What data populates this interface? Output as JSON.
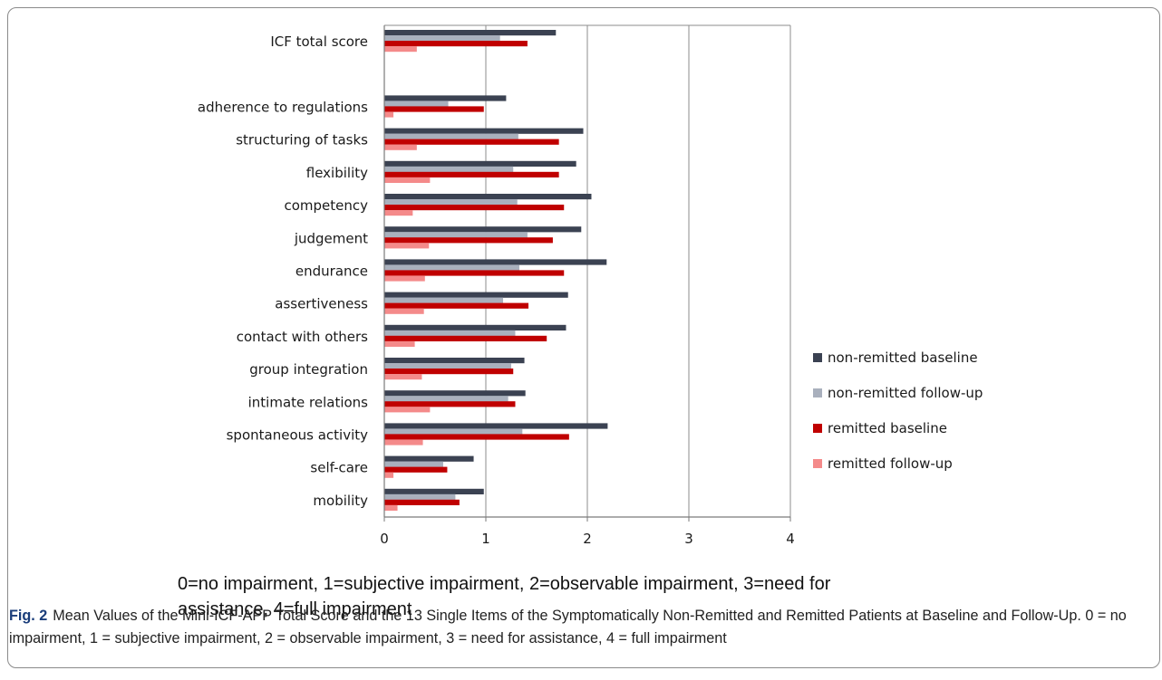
{
  "chart_data": {
    "type": "bar",
    "orientation": "horizontal",
    "title": "",
    "xlabel": "",
    "ylabel": "",
    "xlim": [
      0,
      4
    ],
    "x_ticks": [
      "0",
      "1",
      "2",
      "3",
      "4"
    ],
    "grid": "vertical",
    "legend_position": "right",
    "categories": [
      "ICF total score",
      "",
      "adherence to regulations",
      "structuring of tasks",
      "flexibility",
      "competency",
      "judgement",
      "endurance",
      "assertiveness",
      "contact with others",
      "group integration",
      "intimate relations",
      "spontaneous activity",
      "self-care",
      "mobility"
    ],
    "series": [
      {
        "name": "non-remitted baseline",
        "color": "#3b4252",
        "values": [
          1.69,
          null,
          1.2,
          1.96,
          1.89,
          2.04,
          1.94,
          2.19,
          1.81,
          1.79,
          1.38,
          1.39,
          2.2,
          0.88,
          0.98
        ]
      },
      {
        "name": "non-remitted follow-up",
        "color": "#a9b0bd",
        "values": [
          1.14,
          null,
          0.63,
          1.32,
          1.27,
          1.31,
          1.41,
          1.33,
          1.17,
          1.29,
          1.25,
          1.22,
          1.36,
          0.58,
          0.7
        ]
      },
      {
        "name": "remitted baseline",
        "color": "#c00000",
        "values": [
          1.41,
          null,
          0.98,
          1.72,
          1.72,
          1.77,
          1.66,
          1.77,
          1.42,
          1.6,
          1.27,
          1.29,
          1.82,
          0.62,
          0.74
        ]
      },
      {
        "name": "remitted follow-up",
        "color": "#f48a8a",
        "values": [
          0.32,
          null,
          0.09,
          0.32,
          0.45,
          0.28,
          0.44,
          0.4,
          0.39,
          0.3,
          0.37,
          0.45,
          0.38,
          0.09,
          0.13
        ]
      }
    ]
  },
  "note": "0=no impairment, 1=subjective impairment, 2=observable impairment, 3=need for assistance, 4=full impairment",
  "caption": {
    "label": "Fig. 2",
    "text": "Mean Values of the Mini-ICF-APP Total Score and the 13 Single Items of the Symptomatically Non-Remitted and Remitted Patients at Baseline and Follow-Up. 0 = no impairment, 1 = subjective impairment, 2 = observable impairment, 3 = need for assistance, 4 = full impairment"
  }
}
